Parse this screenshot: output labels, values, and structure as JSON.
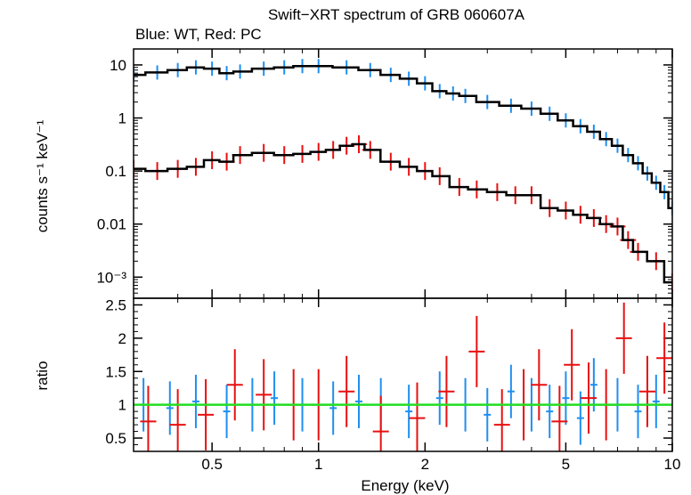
{
  "chart_data": [
    {
      "type": "scatter",
      "panel": "spectrum",
      "title": "Swift−XRT spectrum of GRB 060607A",
      "subtitle": "Blue: WT, Red: PC",
      "ylabel": "counts s⁻¹ keV⁻¹",
      "xlabel": "",
      "x_scale": "log",
      "y_scale": "log",
      "xlim": [
        0.3,
        10
      ],
      "ylim": [
        0.0004,
        20
      ],
      "y_ticks": [
        {
          "value": 10,
          "label": "10"
        },
        {
          "value": 1,
          "label": "1"
        },
        {
          "value": 0.1,
          "label": "0.1"
        },
        {
          "value": 0.01,
          "label": "0.01"
        },
        {
          "value": 0.001,
          "label": "10⁻³"
        }
      ],
      "series": [
        {
          "color": "#1f8ff0",
          "x": [
            0.3,
            0.35,
            0.4,
            0.45,
            0.5,
            0.55,
            0.6,
            0.7,
            0.8,
            0.9,
            1.0,
            1.2,
            1.4,
            1.6,
            1.8,
            2.0,
            2.2,
            2.4,
            2.6,
            3.0,
            3.5,
            4.0,
            4.5,
            5.0,
            5.5,
            6.0,
            6.5,
            7.0,
            7.5,
            8.0,
            8.5,
            9.0,
            9.5,
            10.0
          ],
          "y": [
            6.5,
            7.2,
            8.0,
            9.0,
            8.5,
            7.0,
            7.5,
            8.5,
            9.0,
            9.5,
            9.5,
            9.0,
            8.0,
            6.5,
            5.5,
            4.5,
            3.2,
            2.9,
            2.6,
            2.0,
            1.7,
            1.5,
            1.2,
            0.9,
            0.7,
            0.55,
            0.4,
            0.3,
            0.2,
            0.14,
            0.09,
            0.06,
            0.04,
            0.02
          ]
        },
        {
          "color": "#e81010",
          "x": [
            0.3,
            0.35,
            0.4,
            0.45,
            0.5,
            0.55,
            0.6,
            0.7,
            0.8,
            0.9,
            1.0,
            1.1,
            1.2,
            1.3,
            1.4,
            1.6,
            1.8,
            2.0,
            2.2,
            2.5,
            2.8,
            3.2,
            3.6,
            4.0,
            4.5,
            5.0,
            5.5,
            6.0,
            6.5,
            7.0,
            7.5,
            8.0,
            9.0,
            10.0
          ],
          "y": [
            0.11,
            0.1,
            0.11,
            0.12,
            0.16,
            0.15,
            0.2,
            0.22,
            0.2,
            0.21,
            0.23,
            0.25,
            0.3,
            0.32,
            0.25,
            0.15,
            0.12,
            0.1,
            0.08,
            0.05,
            0.045,
            0.04,
            0.035,
            0.035,
            0.02,
            0.018,
            0.015,
            0.013,
            0.01,
            0.009,
            0.005,
            0.003,
            0.002,
            0.0008
          ]
        }
      ]
    },
    {
      "type": "scatter",
      "panel": "ratio",
      "xlabel": "Energy (keV)",
      "ylabel": "ratio",
      "x_scale": "log",
      "xlim": [
        0.3,
        10
      ],
      "ylim": [
        0.3,
        2.6
      ],
      "x_ticks": [
        {
          "value": 0.5,
          "label": "0.5"
        },
        {
          "value": 1,
          "label": "1"
        },
        {
          "value": 2,
          "label": "2"
        },
        {
          "value": 5,
          "label": "5"
        },
        {
          "value": 10,
          "label": "10"
        }
      ],
      "y_ticks": [
        {
          "value": 0.5,
          "label": "0.5"
        },
        {
          "value": 1,
          "label": "1"
        },
        {
          "value": 1.5,
          "label": "1.5"
        },
        {
          "value": 2,
          "label": "2"
        },
        {
          "value": 2.5,
          "label": "2.5"
        }
      ],
      "reference_line": {
        "y": 1,
        "color": "#22dd22"
      },
      "series": [
        {
          "color": "#1f8ff0",
          "x": [
            0.32,
            0.38,
            0.45,
            0.55,
            0.65,
            0.75,
            0.9,
            1.1,
            1.3,
            1.5,
            1.8,
            2.2,
            2.6,
            3.0,
            3.5,
            4.0,
            4.5,
            5.0,
            5.5,
            6.0,
            7.0,
            8.0,
            9.0
          ],
          "y": [
            1.0,
            0.95,
            1.05,
            0.9,
            1.0,
            1.1,
            1.0,
            0.95,
            1.05,
            1.0,
            0.9,
            1.1,
            1.0,
            0.85,
            1.2,
            1.0,
            0.9,
            1.1,
            0.8,
            1.3,
            1.0,
            0.9,
            1.05
          ]
        },
        {
          "color": "#e81010",
          "x": [
            0.33,
            0.4,
            0.48,
            0.58,
            0.7,
            0.85,
            1.0,
            1.2,
            1.5,
            1.9,
            2.3,
            2.8,
            3.3,
            3.8,
            4.2,
            4.8,
            5.2,
            5.8,
            6.5,
            7.3,
            8.5,
            9.5
          ],
          "y": [
            0.75,
            0.7,
            0.85,
            1.3,
            1.15,
            1.0,
            1.0,
            1.2,
            0.6,
            0.8,
            1.2,
            1.8,
            0.7,
            1.0,
            1.3,
            0.75,
            1.6,
            1.1,
            1.0,
            2.0,
            1.2,
            1.7
          ]
        }
      ]
    }
  ]
}
